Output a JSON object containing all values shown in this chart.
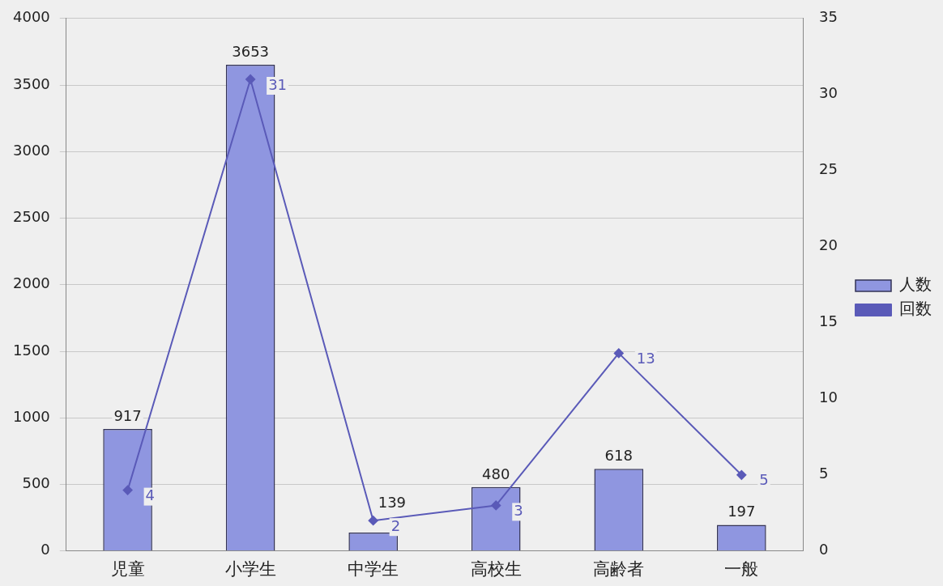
{
  "chart_data": {
    "type": "bar",
    "categories": [
      "児童",
      "小学生",
      "中学生",
      "高校生",
      "高齢者",
      "一般"
    ],
    "series": [
      {
        "name": "人数",
        "color": "#8f96e0",
        "values": [
          917,
          3653,
          139,
          480,
          618,
          197
        ]
      },
      {
        "name": "回数",
        "type": "line",
        "axis": "y2",
        "color": "#5a5ab8",
        "marker": "diamond",
        "values": [
          4,
          31,
          2,
          3,
          13,
          5
        ]
      }
    ],
    "ylim": [
      0,
      4000
    ],
    "yticks": [
      0,
      500,
      1000,
      1500,
      2000,
      2500,
      3000,
      3500,
      4000
    ],
    "y2lim": [
      0,
      35
    ],
    "y2ticks": [
      0,
      5,
      10,
      15,
      20,
      25,
      30,
      35
    ],
    "grid": "y",
    "legend": "right",
    "data_labels": true
  }
}
